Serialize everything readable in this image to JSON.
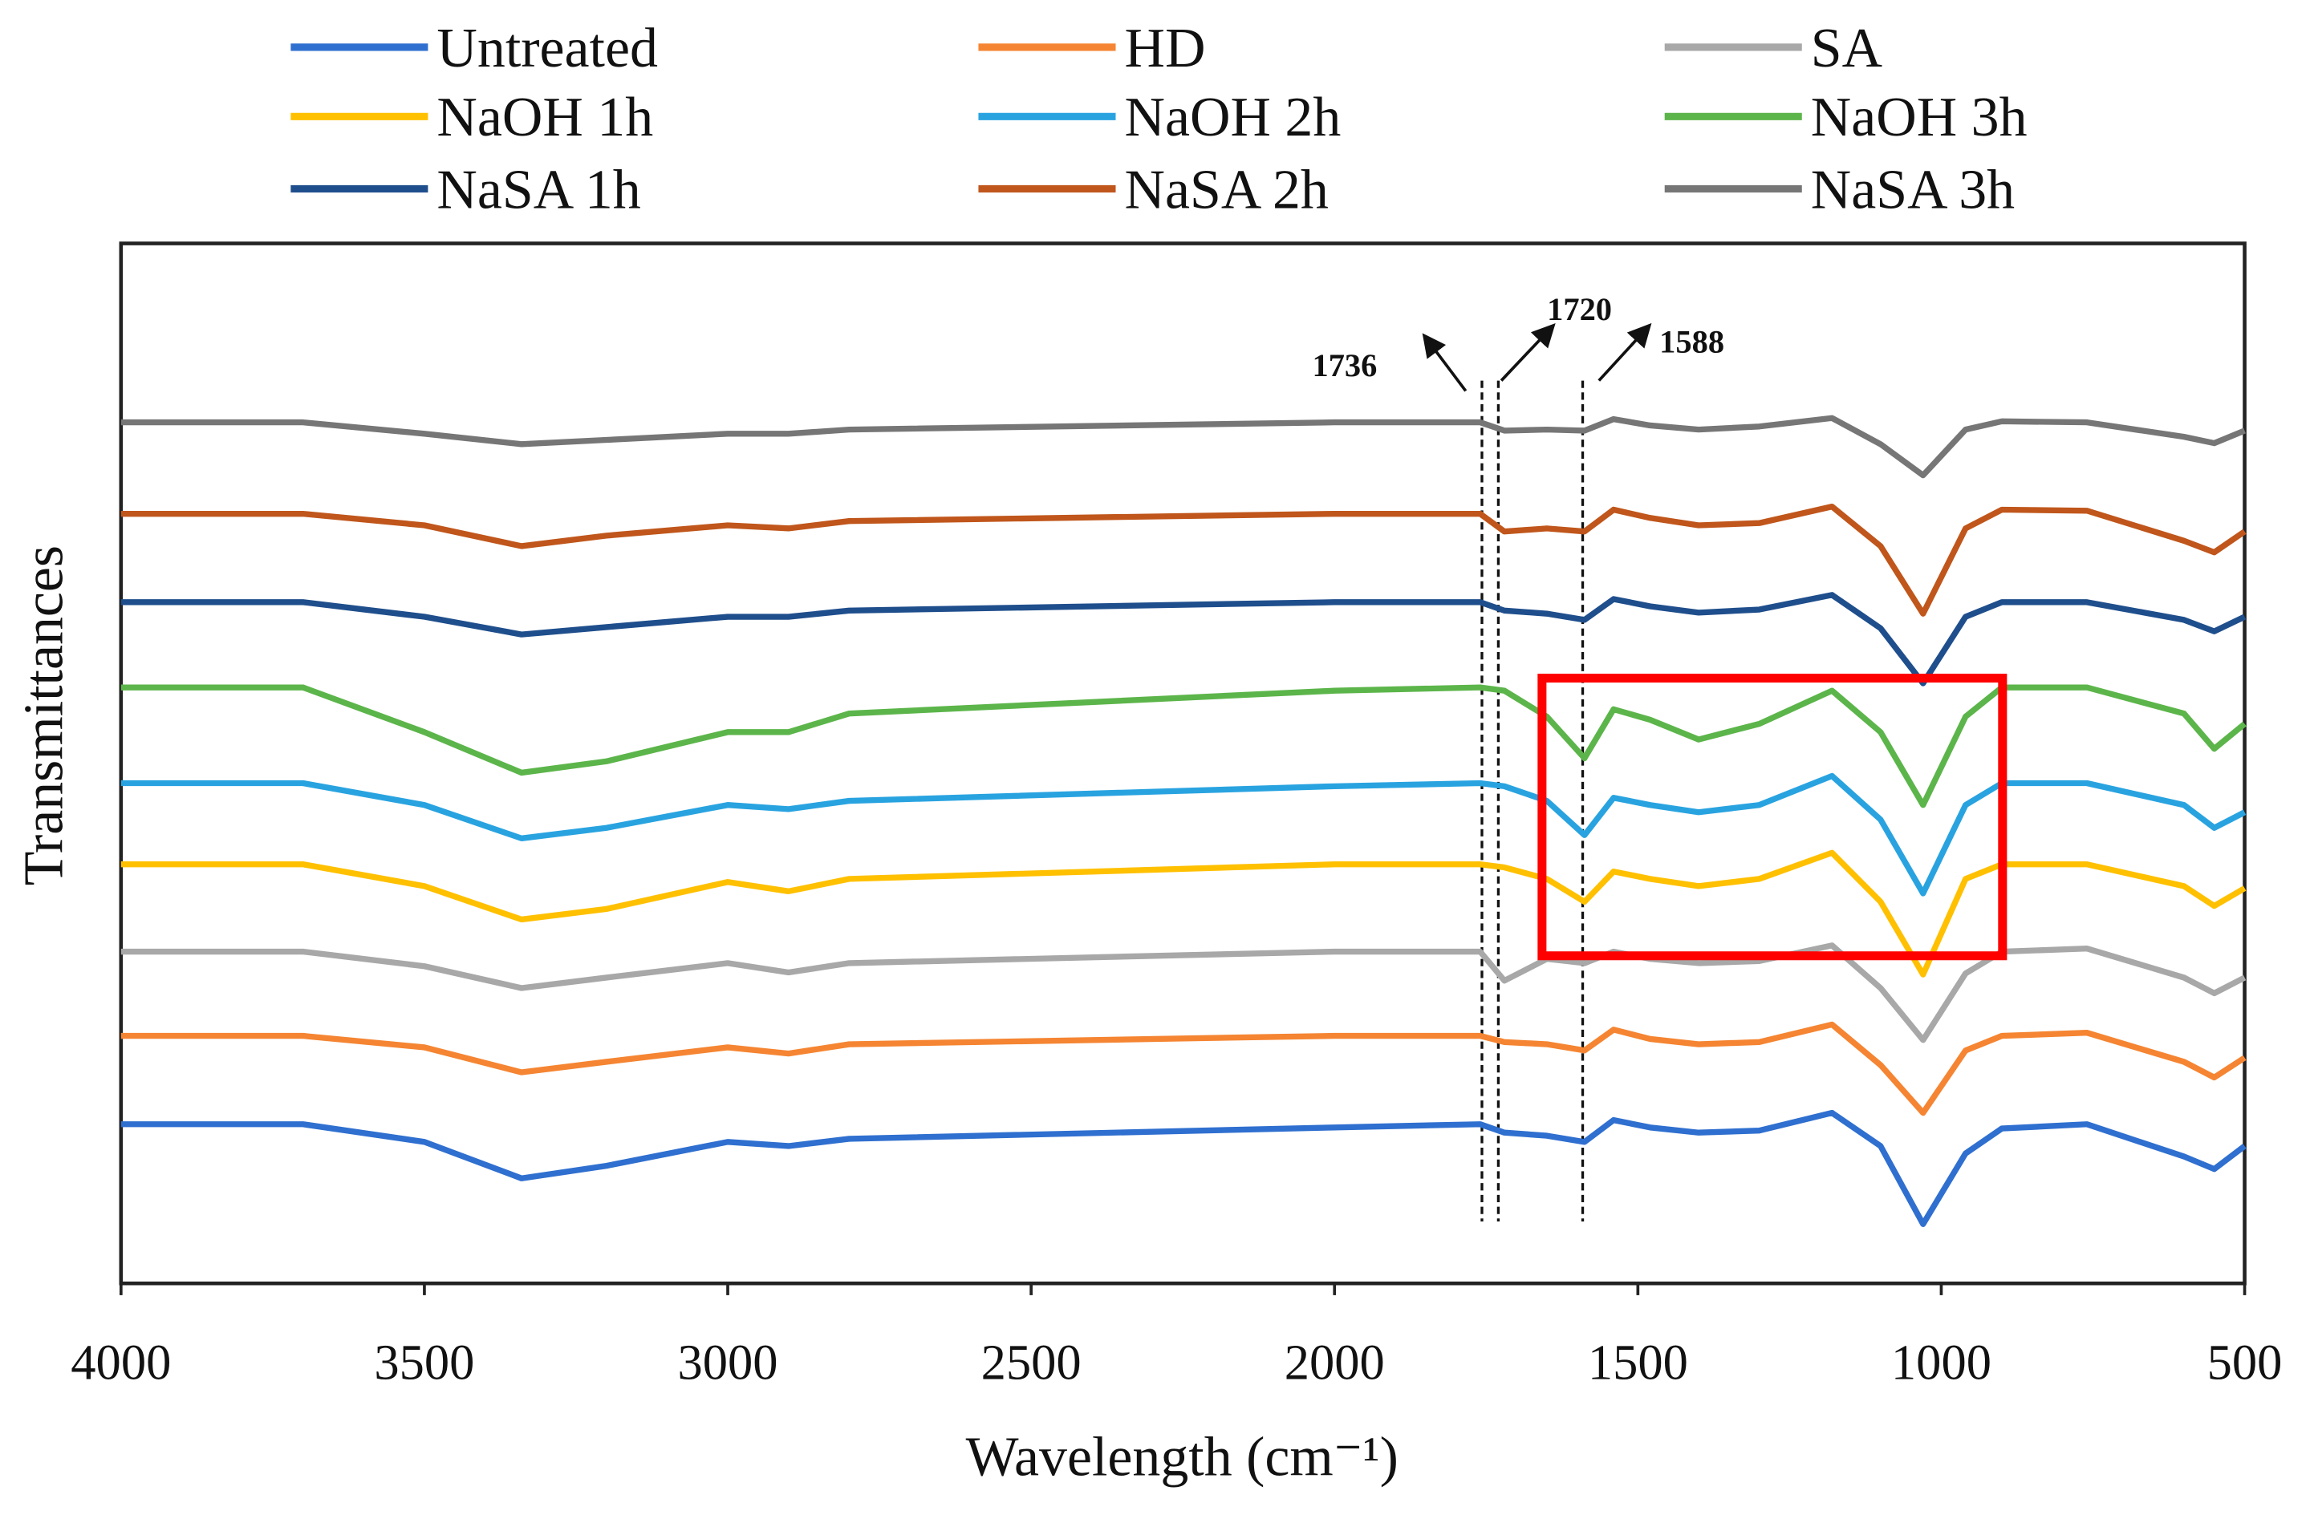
{
  "chart_data": {
    "type": "line",
    "title": "",
    "xlabel": "Wavelength (cm⁻¹)",
    "ylabel": "Transmittances",
    "xlim": [
      4000,
      500
    ],
    "ylim": [
      0,
      100
    ],
    "xticks": [
      4000,
      3500,
      3000,
      2500,
      2000,
      1500,
      1000,
      500
    ],
    "grid": false,
    "legend_position": "top",
    "x": [
      4000,
      3700,
      3500,
      3340,
      3200,
      3000,
      2900,
      2800,
      2000,
      1760,
      1720,
      1650,
      1588,
      1540,
      1480,
      1400,
      1300,
      1180,
      1100,
      1030,
      960,
      900,
      760,
      600,
      550,
      500
    ],
    "series": [
      {
        "name": "Untreated",
        "color": "#2f6fcf",
        "values": [
          15.3,
          15.3,
          13.6,
          10.1,
          11.3,
          13.6,
          13.2,
          13.9,
          15.0,
          15.3,
          14.5,
          14.2,
          13.6,
          15.7,
          15.0,
          14.5,
          14.7,
          16.4,
          13.2,
          5.7,
          12.5,
          14.9,
          15.3,
          12.2,
          11.0,
          13.2
        ]
      },
      {
        "name": "HD",
        "color": "#f58532",
        "values": [
          23.8,
          23.8,
          22.7,
          20.3,
          21.3,
          22.7,
          22.1,
          23.0,
          23.8,
          23.8,
          23.2,
          23.0,
          22.4,
          24.4,
          23.5,
          23.0,
          23.2,
          24.9,
          21.0,
          16.4,
          22.4,
          23.8,
          24.1,
          21.3,
          19.8,
          21.7
        ]
      },
      {
        "name": "SA",
        "color": "#a8a8a8",
        "values": [
          31.9,
          31.9,
          30.5,
          28.4,
          29.4,
          30.8,
          29.9,
          30.8,
          31.9,
          31.9,
          29.1,
          31.2,
          30.8,
          31.9,
          31.2,
          30.8,
          31.0,
          32.5,
          28.4,
          23.4,
          29.8,
          31.9,
          32.2,
          29.4,
          27.9,
          29.4
        ]
      },
      {
        "name": "NaOH 1h",
        "color": "#ffc000",
        "values": [
          40.3,
          40.3,
          38.2,
          35.0,
          36.0,
          38.6,
          37.7,
          38.9,
          40.3,
          40.3,
          40.0,
          38.9,
          36.7,
          39.6,
          38.9,
          38.2,
          38.9,
          41.4,
          36.7,
          29.7,
          38.9,
          40.3,
          40.3,
          38.2,
          36.3,
          38.0
        ]
      },
      {
        "name": "NaOH 2h",
        "color": "#29a3e0",
        "values": [
          48.1,
          48.1,
          46.0,
          42.8,
          43.8,
          46.0,
          45.6,
          46.4,
          47.8,
          48.1,
          47.8,
          46.4,
          43.1,
          46.7,
          46.0,
          45.3,
          46.0,
          48.8,
          44.6,
          37.5,
          46.0,
          48.1,
          48.1,
          46.0,
          43.8,
          45.3
        ]
      },
      {
        "name": "NaOH 3h",
        "color": "#5cb54a",
        "values": [
          57.3,
          57.3,
          53.0,
          49.1,
          50.2,
          53.0,
          53.0,
          54.8,
          57.0,
          57.3,
          57.0,
          54.5,
          50.5,
          55.2,
          54.2,
          52.3,
          53.8,
          57.0,
          53.0,
          46.0,
          54.5,
          57.3,
          57.3,
          54.8,
          51.4,
          53.8
        ]
      },
      {
        "name": "NaSA 1h",
        "color": "#1f4e8c",
        "values": [
          65.5,
          65.5,
          64.1,
          62.4,
          63.1,
          64.1,
          64.1,
          64.7,
          65.5,
          65.5,
          64.7,
          64.4,
          63.8,
          65.8,
          65.1,
          64.5,
          64.8,
          66.2,
          63.0,
          57.7,
          64.1,
          65.5,
          65.5,
          63.8,
          62.7,
          64.1
        ]
      },
      {
        "name": "NaSA 2h",
        "color": "#c0561b",
        "values": [
          74.0,
          74.0,
          72.9,
          70.9,
          71.9,
          72.9,
          72.6,
          73.3,
          74.0,
          74.0,
          72.3,
          72.6,
          72.3,
          74.4,
          73.6,
          72.9,
          73.1,
          74.7,
          70.9,
          64.4,
          72.6,
          74.4,
          74.3,
          71.4,
          70.3,
          72.3
        ]
      },
      {
        "name": "NaSA 3h",
        "color": "#767676",
        "values": [
          82.8,
          82.8,
          81.7,
          80.7,
          81.1,
          81.7,
          81.7,
          82.1,
          82.8,
          82.8,
          82.0,
          82.1,
          82.0,
          83.1,
          82.5,
          82.1,
          82.4,
          83.2,
          80.7,
          77.7,
          82.1,
          82.9,
          82.8,
          81.4,
          80.8,
          82.0
        ]
      }
    ],
    "annotations": [
      {
        "label": "1736",
        "x": 1757,
        "arrow": "up-left"
      },
      {
        "label": "1720",
        "x": 1730,
        "arrow": "up-right"
      },
      {
        "label": "1588",
        "x": 1591,
        "arrow": "up-right"
      }
    ],
    "highlight_box": {
      "x_range": [
        1658,
        899
      ],
      "y_range": [
        31.5,
        58.2
      ],
      "color": "#ff0000"
    }
  }
}
